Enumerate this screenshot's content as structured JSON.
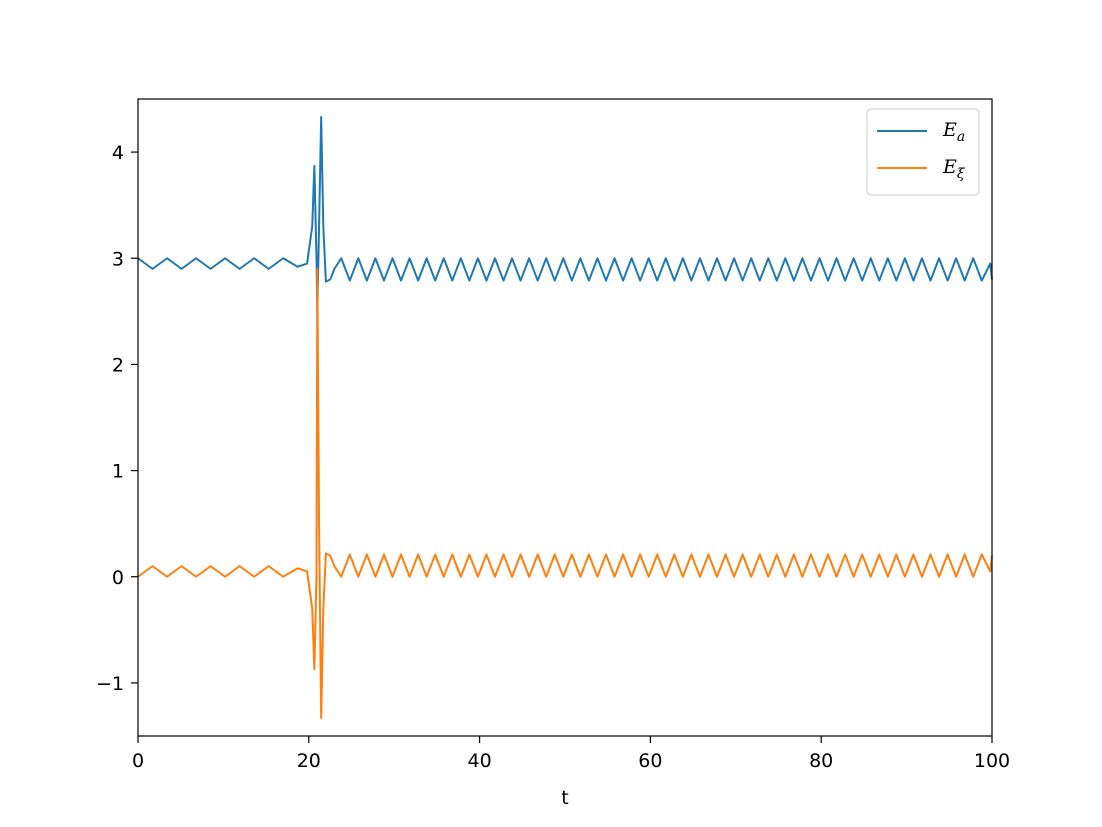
{
  "chart_data": {
    "type": "line",
    "title": "",
    "xlabel": "t",
    "ylabel": "",
    "xlim": [
      0,
      100
    ],
    "ylim": [
      -1.5,
      4.5
    ],
    "xticks": [
      0,
      20,
      40,
      60,
      80,
      100
    ],
    "yticks": [
      -1,
      0,
      1,
      2,
      3,
      4
    ],
    "ytick_labels": [
      "−1",
      "0",
      "1",
      "2",
      "3",
      "4"
    ],
    "grid": false,
    "legend_position": "top-right",
    "series": [
      {
        "name": "E_a",
        "color": "#1f77b4",
        "x": [
          0,
          1.7,
          3.4,
          5.1,
          6.8,
          8.5,
          10.2,
          11.9,
          13.6,
          15.3,
          17.0,
          18.7,
          19.8,
          20.4,
          20.65,
          20.9,
          21.0,
          21.2,
          21.45,
          21.7,
          22.0,
          22.5,
          23.0,
          23.8,
          24.8,
          25.8,
          26.8,
          27.8,
          28.8,
          29.8,
          30.8,
          31.8,
          32.8,
          33.8,
          34.8,
          35.8,
          36.8,
          37.8,
          38.8,
          39.8,
          40.8,
          41.8,
          42.8,
          43.8,
          44.8,
          45.8,
          46.8,
          47.8,
          48.8,
          49.8,
          50.8,
          51.8,
          52.8,
          53.8,
          54.8,
          55.8,
          56.8,
          57.8,
          58.8,
          59.8,
          60.8,
          61.8,
          62.8,
          63.8,
          64.8,
          65.8,
          66.8,
          67.8,
          68.8,
          69.8,
          70.8,
          71.8,
          72.8,
          73.8,
          74.8,
          75.8,
          76.8,
          77.8,
          78.8,
          79.8,
          80.8,
          81.8,
          82.8,
          83.8,
          84.8,
          85.8,
          86.8,
          87.8,
          88.8,
          89.8,
          90.8,
          91.8,
          92.8,
          93.8,
          94.8,
          95.8,
          96.8,
          97.8,
          98.8,
          99.8,
          100
        ],
        "y": [
          3.0,
          2.9,
          3.0,
          2.9,
          3.0,
          2.9,
          3.0,
          2.9,
          3.0,
          2.9,
          3.0,
          2.92,
          2.95,
          3.3,
          3.87,
          3.0,
          2.5,
          3.3,
          4.33,
          3.3,
          2.78,
          2.8,
          2.9,
          3.0,
          2.79,
          3.0,
          2.79,
          3.0,
          2.79,
          3.0,
          2.79,
          3.0,
          2.79,
          3.0,
          2.79,
          3.0,
          2.79,
          3.0,
          2.79,
          3.0,
          2.79,
          3.0,
          2.79,
          3.0,
          2.79,
          3.0,
          2.79,
          3.0,
          2.79,
          3.0,
          2.79,
          3.0,
          2.79,
          3.0,
          2.79,
          3.0,
          2.79,
          3.0,
          2.79,
          3.0,
          2.79,
          3.0,
          2.79,
          3.0,
          2.79,
          3.0,
          2.79,
          3.0,
          2.79,
          3.0,
          2.79,
          3.0,
          2.79,
          3.0,
          2.79,
          3.0,
          2.79,
          3.0,
          2.79,
          3.0,
          2.79,
          3.0,
          2.79,
          3.0,
          2.79,
          3.0,
          2.79,
          3.0,
          2.79,
          3.0,
          2.79,
          3.0,
          2.79,
          3.0,
          2.79,
          3.0,
          2.79,
          3.0,
          2.79,
          2.95,
          2.8
        ]
      },
      {
        "name": "E_ξ",
        "color": "#ff7f0e",
        "x": [
          0,
          1.7,
          3.4,
          5.1,
          6.8,
          8.5,
          10.2,
          11.9,
          13.6,
          15.3,
          17.0,
          18.7,
          19.8,
          20.4,
          20.65,
          20.9,
          21.0,
          21.2,
          21.45,
          21.7,
          22.0,
          22.5,
          23.0,
          23.8,
          24.8,
          25.8,
          26.8,
          27.8,
          28.8,
          29.8,
          30.8,
          31.8,
          32.8,
          33.8,
          34.8,
          35.8,
          36.8,
          37.8,
          38.8,
          39.8,
          40.8,
          41.8,
          42.8,
          43.8,
          44.8,
          45.8,
          46.8,
          47.8,
          48.8,
          49.8,
          50.8,
          51.8,
          52.8,
          53.8,
          54.8,
          55.8,
          56.8,
          57.8,
          58.8,
          59.8,
          60.8,
          61.8,
          62.8,
          63.8,
          64.8,
          65.8,
          66.8,
          67.8,
          68.8,
          69.8,
          70.8,
          71.8,
          72.8,
          73.8,
          74.8,
          75.8,
          76.8,
          77.8,
          78.8,
          79.8,
          80.8,
          81.8,
          82.8,
          83.8,
          84.8,
          85.8,
          86.8,
          87.8,
          88.8,
          89.8,
          90.8,
          91.8,
          92.8,
          93.8,
          94.8,
          95.8,
          96.8,
          97.8,
          98.8,
          99.8,
          100
        ],
        "y": [
          0.0,
          0.1,
          0.0,
          0.1,
          0.0,
          0.1,
          0.0,
          0.1,
          0.0,
          0.1,
          0.0,
          0.08,
          0.05,
          -0.3,
          -0.87,
          0.0,
          2.9,
          0.5,
          -1.33,
          -0.3,
          0.22,
          0.2,
          0.1,
          0.0,
          0.21,
          0.0,
          0.21,
          0.0,
          0.21,
          0.0,
          0.21,
          0.0,
          0.21,
          0.0,
          0.21,
          0.0,
          0.21,
          0.0,
          0.21,
          0.0,
          0.21,
          0.0,
          0.21,
          0.0,
          0.21,
          0.0,
          0.21,
          0.0,
          0.21,
          0.0,
          0.21,
          0.0,
          0.21,
          0.0,
          0.21,
          0.0,
          0.21,
          0.0,
          0.21,
          0.0,
          0.21,
          0.0,
          0.21,
          0.0,
          0.21,
          0.0,
          0.21,
          0.0,
          0.21,
          0.0,
          0.21,
          0.0,
          0.21,
          0.0,
          0.21,
          0.0,
          0.21,
          0.0,
          0.21,
          0.0,
          0.21,
          0.0,
          0.21,
          0.0,
          0.21,
          0.0,
          0.21,
          0.0,
          0.21,
          0.0,
          0.21,
          0.0,
          0.21,
          0.0,
          0.21,
          0.0,
          0.21,
          0.0,
          0.21,
          0.05,
          0.2
        ]
      }
    ],
    "legend": {
      "items": [
        {
          "base": "E",
          "sub": "a",
          "color": "#1f77b4"
        },
        {
          "base": "E",
          "sub": "ξ",
          "color": "#ff7f0e"
        }
      ]
    }
  }
}
